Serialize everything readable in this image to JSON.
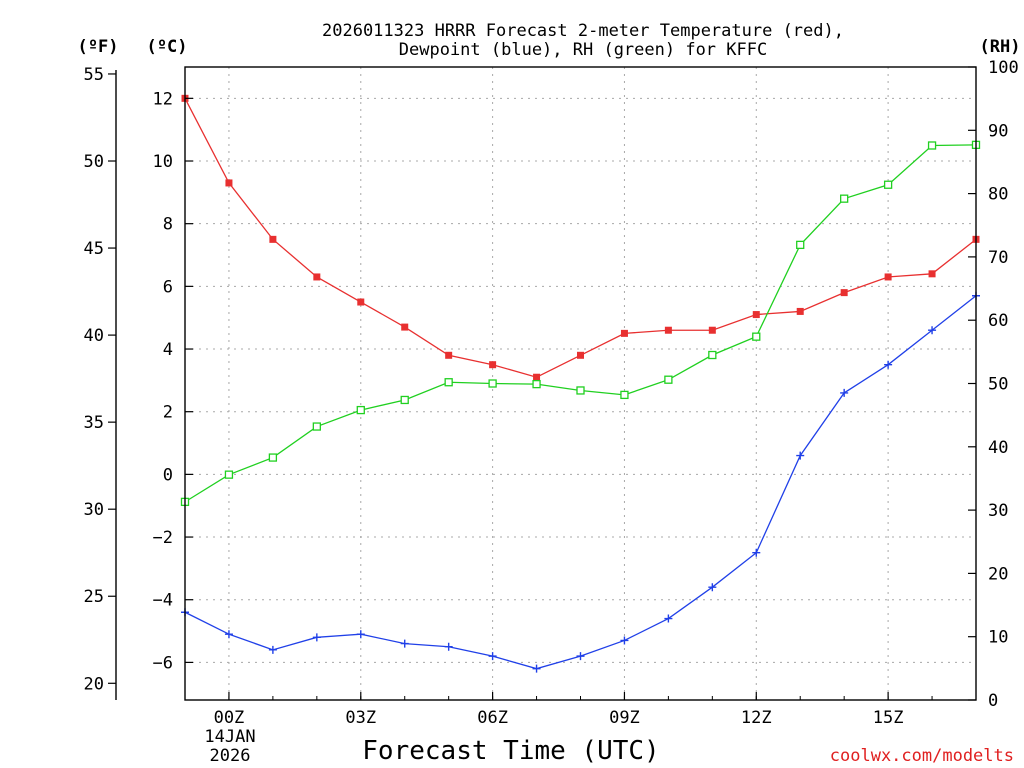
{
  "chart_data": {
    "type": "line",
    "title_line1": "2026011323 HRRR Forecast 2-meter Temperature (red),",
    "title_line2": "Dewpoint (blue), RH (green) for KFFC",
    "xlabel": "Forecast Time (UTC)",
    "date_label_line1": "14JAN",
    "date_label_line2": "2026",
    "credit": "coolwx.com/modelts",
    "unit_f": "(ºF)",
    "unit_c": "(ºC)",
    "unit_rh": "(RH)",
    "x_hours": [
      -1,
      0,
      1,
      2,
      3,
      4,
      5,
      6,
      7,
      8,
      9,
      10,
      11,
      12,
      13,
      14,
      15,
      16,
      17
    ],
    "x_range": [
      -1,
      17
    ],
    "x_ticks": [
      {
        "hour": 0,
        "label": "00Z"
      },
      {
        "hour": 3,
        "label": "03Z"
      },
      {
        "hour": 6,
        "label": "06Z"
      },
      {
        "hour": 9,
        "label": "09Z"
      },
      {
        "hour": 12,
        "label": "12Z"
      },
      {
        "hour": 15,
        "label": "15Z"
      }
    ],
    "celsius_axis": {
      "range": [
        -7.2,
        13.0
      ],
      "ticks": [
        12,
        10,
        8,
        6,
        4,
        2,
        0,
        -2,
        -4,
        -6
      ],
      "tick_labels": [
        "12",
        "10",
        "8",
        "6",
        "4",
        "2",
        "0",
        "−2",
        "−4",
        "−6"
      ]
    },
    "fahrenheit_axis": {
      "ticks": [
        55,
        50,
        45,
        40,
        35,
        30,
        25,
        20
      ],
      "tick_labels": [
        "55",
        "50",
        "45",
        "40",
        "35",
        "30",
        "25",
        "20"
      ]
    },
    "rh_axis": {
      "range": [
        0,
        100
      ],
      "ticks": [
        100,
        90,
        80,
        70,
        60,
        50,
        40,
        30,
        20,
        10,
        0
      ],
      "tick_labels": [
        "100",
        "90",
        "80",
        "70",
        "60",
        "50",
        "40",
        "30",
        "20",
        "10",
        "0"
      ]
    },
    "series": [
      {
        "name": "Temperature",
        "units": "C",
        "color": "#e83030",
        "marker": "filled-square",
        "values": [
          12.0,
          9.3,
          7.5,
          6.3,
          5.5,
          4.7,
          3.8,
          3.5,
          3.1,
          3.8,
          4.5,
          4.6,
          4.6,
          5.1,
          5.2,
          5.8,
          6.3,
          6.4,
          7.5
        ]
      },
      {
        "name": "Dewpoint",
        "units": "C",
        "color": "#2040e8",
        "marker": "plus",
        "values": [
          -4.4,
          -5.1,
          -5.6,
          -5.2,
          -5.1,
          -5.4,
          -5.5,
          -5.8,
          -6.2,
          -5.8,
          -5.3,
          -4.6,
          -3.6,
          -2.5,
          0.6,
          2.6,
          3.5,
          4.6,
          5.7
        ]
      },
      {
        "name": "RH",
        "units": "%",
        "color": "#20d020",
        "marker": "open-square",
        "values": [
          31.3,
          35.6,
          38.3,
          43.2,
          45.8,
          47.4,
          50.2,
          50.0,
          49.9,
          48.9,
          48.2,
          50.6,
          54.5,
          57.4,
          71.9,
          79.2,
          81.4,
          87.6,
          87.7
        ]
      }
    ]
  }
}
